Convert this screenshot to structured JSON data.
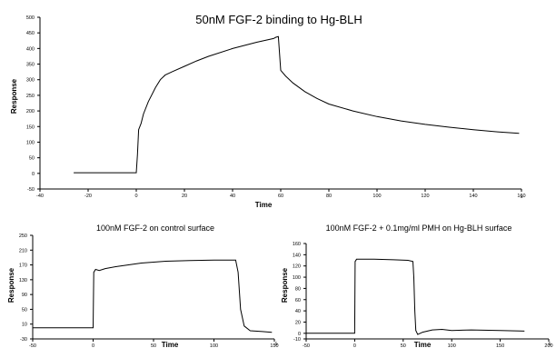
{
  "chart_data": [
    {
      "type": "line",
      "title": "50nM FGF-2 binding to Hg-BLH",
      "xlabel": "Time",
      "ylabel": "Response",
      "x_unit": "s",
      "xlim": [
        -40,
        160
      ],
      "ylim": [
        -50,
        500
      ],
      "xticks": [
        -40,
        -20,
        0,
        20,
        40,
        60,
        80,
        100,
        120,
        140,
        160
      ],
      "yticks": [
        -50,
        0,
        50,
        100,
        150,
        200,
        250,
        300,
        350,
        400,
        450,
        500
      ],
      "grid": false,
      "series": [
        {
          "x": [
            -26,
            -10,
            0,
            0.5,
            1,
            2,
            3,
            5,
            8,
            10,
            12,
            15,
            20,
            25,
            30,
            40,
            50,
            57,
            58,
            59,
            60,
            62,
            65,
            70,
            75,
            80,
            90,
            100,
            110,
            120,
            130,
            140,
            150,
            159
          ],
          "y": [
            2,
            2,
            2,
            60,
            140,
            160,
            190,
            230,
            275,
            300,
            315,
            326,
            343,
            360,
            375,
            400,
            420,
            432,
            436,
            438,
            330,
            312,
            290,
            262,
            240,
            222,
            200,
            182,
            168,
            157,
            148,
            140,
            133,
            128
          ]
        }
      ]
    },
    {
      "type": "line",
      "title": "100nM FGF-2 on control surface",
      "xlabel": "Time",
      "ylabel": "Response",
      "x_unit": "s",
      "xlim": [
        -50,
        150
      ],
      "ylim": [
        -30,
        250
      ],
      "xticks": [
        -50,
        0,
        50,
        100,
        150
      ],
      "yticks": [
        -30,
        10,
        50,
        90,
        130,
        170,
        210,
        250
      ],
      "grid": false,
      "series": [
        {
          "x": [
            -50,
            0,
            0.5,
            2,
            5,
            10,
            20,
            40,
            60,
            80,
            100,
            118,
            120,
            122,
            125,
            130,
            140,
            148
          ],
          "y": [
            0,
            0,
            150,
            158,
            155,
            160,
            166,
            175,
            180,
            182,
            183,
            183,
            150,
            50,
            5,
            -8,
            -10,
            -12
          ]
        }
      ]
    },
    {
      "type": "line",
      "title": "100nM FGF-2 + 0.1mg/ml PMH on Hg-BLH surface",
      "xlabel": "Time",
      "ylabel": "Response",
      "x_unit": "s",
      "xlim": [
        -50,
        200
      ],
      "ylim": [
        -10,
        160
      ],
      "xticks": [
        -50,
        0,
        50,
        100,
        150,
        200
      ],
      "yticks": [
        -10,
        0,
        20,
        40,
        60,
        80,
        100,
        120,
        140,
        160
      ],
      "grid": false,
      "series": [
        {
          "x": [
            -50,
            0,
            0.5,
            2,
            20,
            40,
            55,
            60,
            61,
            62,
            63,
            65,
            70,
            80,
            90,
            100,
            120,
            150,
            175
          ],
          "y": [
            0,
            0,
            128,
            132,
            132,
            131,
            130,
            128,
            100,
            40,
            5,
            -2,
            2,
            6,
            7,
            5,
            6,
            5,
            4
          ]
        }
      ]
    }
  ]
}
